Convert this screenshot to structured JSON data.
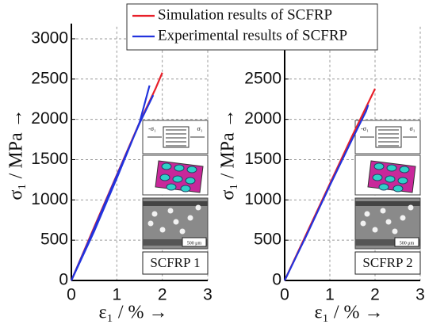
{
  "chart_data": [
    {
      "type": "line",
      "xlabel": "ε₁ / %  →",
      "ylabel": "σ₁ / MPa →",
      "xlim": [
        0,
        3
      ],
      "xticks": [
        0,
        1,
        2,
        3
      ],
      "ylim": [
        0,
        3150
      ],
      "yticks": [
        0,
        500,
        1000,
        1500,
        2000,
        2500,
        3000
      ],
      "grid": true,
      "series": [
        {
          "name": "Simulation results of SCFRP",
          "color": "#e8202a",
          "x": [
            0,
            0.5,
            1,
            1.5,
            1.85,
            2.0
          ],
          "values": [
            0,
            660,
            1310,
            1960,
            2380,
            2580
          ]
        },
        {
          "name": "Experimental results of SCFRP",
          "color": "#2233dd",
          "x": [
            0,
            0.5,
            1,
            1.5,
            1.72,
            null,
            0,
            0.5,
            1,
            1.5,
            1.8
          ],
          "values": [
            0,
            610,
            1270,
            1960,
            2420,
            null,
            0,
            640,
            1300,
            1950,
            2300
          ]
        }
      ],
      "inset_stress_labels": [
        "-σ₁",
        "σ₁"
      ],
      "scale_bar": "500 μm",
      "inset_label": "SCFRP 1"
    },
    {
      "type": "line",
      "xlabel": "ε₁ / %  →",
      "ylabel": "σ₁ / MPa →",
      "xlim": [
        0,
        3
      ],
      "xticks": [
        0,
        1,
        2,
        3
      ],
      "ylim": [
        0,
        3150
      ],
      "yticks": [
        0,
        500,
        1000,
        1500,
        2000,
        2500
      ],
      "grid": true,
      "series": [
        {
          "color": "#e8202a",
          "x": [
            0,
            0.5,
            1,
            1.5,
            2.0
          ],
          "values": [
            0,
            600,
            1200,
            1800,
            2380
          ]
        },
        {
          "color": "#2233dd",
          "x": [
            0,
            0.5,
            1,
            1.5,
            1.8,
            1.85
          ],
          "values": [
            0,
            580,
            1180,
            1760,
            2100,
            2180
          ]
        }
      ],
      "inset_stress_labels": [
        "-σ₁",
        "σ₁"
      ],
      "scale_bar": "500 μm",
      "inset_label": "SCFRP 2"
    }
  ]
}
